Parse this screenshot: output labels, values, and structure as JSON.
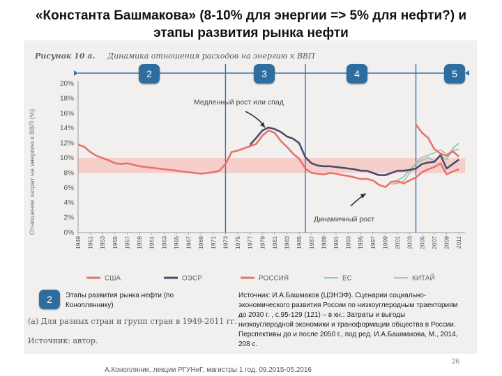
{
  "slide": {
    "title": "«Константа Башмакова» (8-10% для энергии => 5% для нефти?) и этапы развития рынка нефти",
    "figure_label": "Рисунок 10 а.",
    "figure_title": "Динамика отношения расходов на энергию к ВВП",
    "stages": [
      "2",
      "3",
      "4",
      "5"
    ],
    "left_badge": "2",
    "note_left": "Этапы развития рынка нефти (по Конопляннику)",
    "note_right": "Источник: И.А.Башмаков (ЦЭНЭФ). Сценарии социально-экономического развития России по низкоуглеродным траекториям до 2030 г. , с.95-129 (121) – в кн.: Затраты и выгоды низкоуглеродной экономики и траноформации общества в России. Перспективы до и после 2050 г., под ред. И.А.Башмакова, М., 2014, 208 с.",
    "caption": "(а) Для разных стран и групп стран в 1949-2011 гг.",
    "source": "Источник: автор.",
    "footer": "А.Конопляник, лекции РГУНиГ, магистры 1 год, 09.2015-05.2016",
    "page_number": "26"
  },
  "chart_data": {
    "type": "line",
    "ylabel": "Отношение затрат на энергию к ВВП (%)",
    "ylim": [
      0,
      20
    ],
    "xlim": [
      1949,
      2012
    ],
    "yticks": [
      "0%",
      "2%",
      "4%",
      "6%",
      "8%",
      "10%",
      "12%",
      "14%",
      "16%",
      "18%",
      "20%"
    ],
    "xticks": [
      "1949",
      "1951",
      "1953",
      "1955",
      "1957",
      "1959",
      "1961",
      "1963",
      "1965",
      "1967",
      "1969",
      "1971",
      "1973",
      "1975",
      "1977",
      "1979",
      "1981",
      "1983",
      "1985",
      "1987",
      "1989",
      "1991",
      "1993",
      "1995",
      "1997",
      "1999",
      "2001",
      "2003",
      "2005",
      "2007",
      "2009",
      "2011"
    ],
    "band": [
      8,
      10
    ],
    "stage_lines_x": [
      1973,
      1986,
      2004
    ],
    "annotations": {
      "slow": "Медленный рост или спад",
      "dynamic": "Динамичный рост"
    },
    "legend_position": "bottom",
    "series": [
      {
        "name": "США",
        "color": "#e8736a",
        "points": [
          [
            1949,
            11.8
          ],
          [
            1950,
            11.5
          ],
          [
            1951,
            10.8
          ],
          [
            1952,
            10.3
          ],
          [
            1953,
            10.0
          ],
          [
            1954,
            9.7
          ],
          [
            1955,
            9.3
          ],
          [
            1956,
            9.2
          ],
          [
            1957,
            9.3
          ],
          [
            1958,
            9.1
          ],
          [
            1959,
            8.9
          ],
          [
            1960,
            8.8
          ],
          [
            1961,
            8.7
          ],
          [
            1962,
            8.6
          ],
          [
            1963,
            8.5
          ],
          [
            1964,
            8.4
          ],
          [
            1965,
            8.3
          ],
          [
            1966,
            8.2
          ],
          [
            1967,
            8.1
          ],
          [
            1968,
            8.0
          ],
          [
            1969,
            7.9
          ],
          [
            1970,
            8.0
          ],
          [
            1971,
            8.1
          ],
          [
            1972,
            8.3
          ],
          [
            1973,
            9.2
          ],
          [
            1974,
            10.8
          ],
          [
            1975,
            11.0
          ],
          [
            1976,
            11.3
          ],
          [
            1977,
            11.6
          ],
          [
            1978,
            11.9
          ],
          [
            1979,
            13.0
          ],
          [
            1980,
            13.7
          ],
          [
            1981,
            13.4
          ],
          [
            1982,
            12.3
          ],
          [
            1983,
            11.5
          ],
          [
            1984,
            10.6
          ],
          [
            1985,
            9.9
          ],
          [
            1986,
            8.6
          ],
          [
            1987,
            8.0
          ],
          [
            1988,
            7.9
          ],
          [
            1989,
            7.8
          ],
          [
            1990,
            8.0
          ],
          [
            1991,
            7.9
          ],
          [
            1992,
            7.7
          ],
          [
            1993,
            7.6
          ],
          [
            1994,
            7.4
          ],
          [
            1995,
            7.2
          ],
          [
            1996,
            7.2
          ],
          [
            1997,
            7.0
          ],
          [
            1998,
            6.4
          ],
          [
            1999,
            6.1
          ],
          [
            2000,
            6.8
          ],
          [
            2001,
            6.9
          ],
          [
            2002,
            6.6
          ],
          [
            2003,
            7.0
          ],
          [
            2004,
            7.4
          ],
          [
            2005,
            8.1
          ],
          [
            2006,
            8.5
          ],
          [
            2007,
            8.8
          ],
          [
            2008,
            9.3
          ],
          [
            2009,
            7.8
          ],
          [
            2010,
            8.2
          ],
          [
            2011,
            8.5
          ]
        ]
      },
      {
        "name": "ОЭСР",
        "color": "#4a4a6e",
        "points": [
          [
            1977,
            11.8
          ],
          [
            1978,
            12.7
          ],
          [
            1979,
            13.7
          ],
          [
            1980,
            14.1
          ],
          [
            1981,
            13.9
          ],
          [
            1982,
            13.5
          ],
          [
            1983,
            12.9
          ],
          [
            1984,
            12.6
          ],
          [
            1985,
            12.0
          ],
          [
            1986,
            10.1
          ],
          [
            1987,
            9.3
          ],
          [
            1988,
            9.0
          ],
          [
            1989,
            8.9
          ],
          [
            1990,
            8.9
          ],
          [
            1991,
            8.8
          ],
          [
            1992,
            8.7
          ],
          [
            1993,
            8.6
          ],
          [
            1994,
            8.5
          ],
          [
            1995,
            8.3
          ],
          [
            1996,
            8.3
          ],
          [
            1997,
            8.0
          ],
          [
            1998,
            7.7
          ],
          [
            1999,
            7.7
          ],
          [
            2000,
            8.0
          ],
          [
            2001,
            8.3
          ],
          [
            2002,
            8.3
          ],
          [
            2003,
            8.4
          ],
          [
            2004,
            8.6
          ],
          [
            2005,
            9.2
          ],
          [
            2006,
            9.4
          ],
          [
            2007,
            9.5
          ],
          [
            2008,
            10.4
          ],
          [
            2009,
            8.6
          ],
          [
            2010,
            9.2
          ],
          [
            2011,
            9.8
          ]
        ]
      },
      {
        "name": "РОССИЯ",
        "color": "#e8736a",
        "points": [
          [
            2004,
            14.5
          ],
          [
            2005,
            13.4
          ],
          [
            2006,
            12.7
          ],
          [
            2007,
            11.2
          ],
          [
            2008,
            10.6
          ],
          [
            2009,
            10.3
          ],
          [
            2010,
            10.9
          ],
          [
            2011,
            10.2
          ]
        ]
      },
      {
        "name": "ЕС",
        "color": "#7fc6ad",
        "points": [
          [
            2001,
            7.0
          ],
          [
            2002,
            7.5
          ],
          [
            2003,
            8.5
          ],
          [
            2004,
            9.2
          ],
          [
            2005,
            9.7
          ],
          [
            2006,
            10.1
          ],
          [
            2007,
            9.6
          ],
          [
            2008,
            10.4
          ],
          [
            2009,
            9.8
          ],
          [
            2010,
            11.3
          ],
          [
            2011,
            12.0
          ]
        ]
      },
      {
        "name": "КИТАЙ",
        "color": "#b5b5b5",
        "points": [
          [
            2000,
            6.5
          ],
          [
            2001,
            6.6
          ],
          [
            2002,
            6.9
          ],
          [
            2003,
            8.0
          ],
          [
            2004,
            9.4
          ],
          [
            2005,
            10.1
          ],
          [
            2006,
            10.4
          ],
          [
            2007,
            10.7
          ],
          [
            2008,
            11.1
          ],
          [
            2009,
            10.5
          ],
          [
            2010,
            11.0
          ],
          [
            2011,
            11.2
          ]
        ]
      }
    ]
  }
}
